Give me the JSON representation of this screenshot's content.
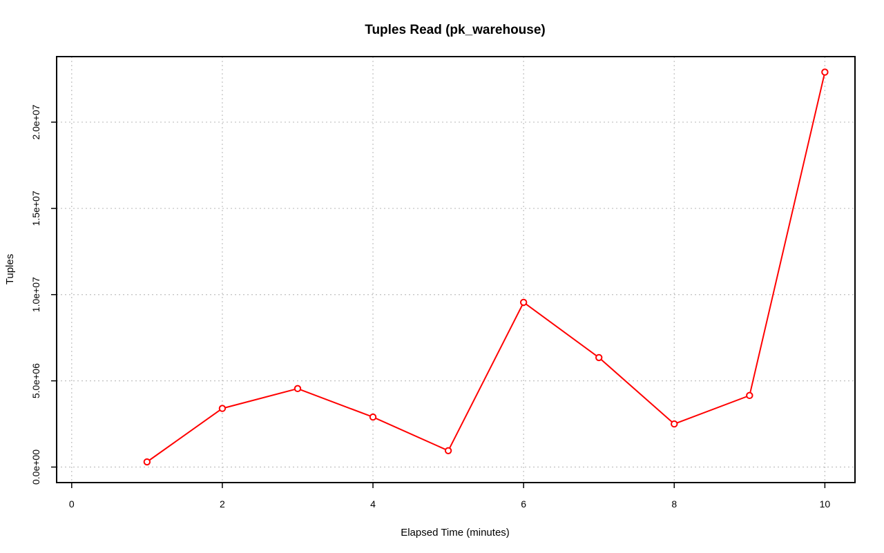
{
  "chart_data": {
    "type": "line",
    "title": "Tuples Read (pk_warehouse)",
    "xlabel": "Elapsed Time (minutes)",
    "ylabel": "Tuples",
    "xlim": [
      -0.2,
      10.4
    ],
    "ylim": [
      -900000,
      23800000
    ],
    "x_ticks": [
      0,
      2,
      4,
      6,
      8,
      10
    ],
    "x_tick_labels": [
      "0",
      "2",
      "4",
      "6",
      "8",
      "10"
    ],
    "y_ticks": [
      0,
      5000000,
      10000000,
      15000000,
      20000000
    ],
    "y_tick_labels": [
      "0.0e+00",
      "5.0e+06",
      "1.0e+07",
      "1.5e+07",
      "2.0e+07"
    ],
    "grid": true,
    "series": [
      {
        "color": "#ff0000",
        "marker": "open-circle",
        "x": [
          1,
          2,
          3,
          4,
          5,
          6,
          7,
          8,
          9,
          10
        ],
        "y": [
          300000,
          3400000,
          4550000,
          2900000,
          950000,
          9550000,
          6350000,
          2500000,
          4150000,
          22900000
        ]
      }
    ]
  }
}
